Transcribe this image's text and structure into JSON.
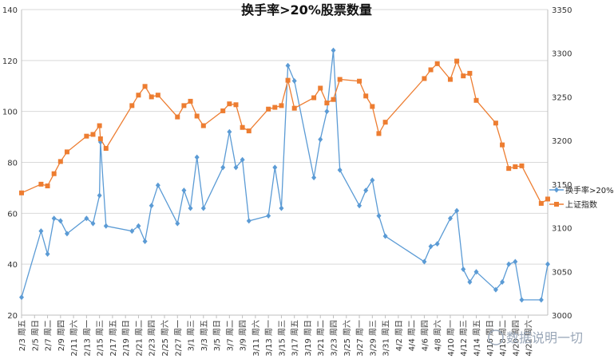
{
  "chart_data": {
    "type": "line",
    "title": "换手率>20%股票数量",
    "x_labels": [
      "2/3 周五",
      "2/5 周日",
      "2/7 周二",
      "2/9 周四",
      "2/11 周六",
      "2/13 周一",
      "2/15 周三",
      "2/17 周五",
      "2/19 周日",
      "2/21 周二",
      "2/23 周四",
      "2/25 周六",
      "2/27 周一",
      "3/1 周三",
      "3/3 周五",
      "3/5 周日",
      "3/7 周二",
      "3/9 周四",
      "3/11 周六",
      "3/13 周一",
      "3/15 周三",
      "3/17 周五",
      "3/19 周日",
      "3/21 周二",
      "3/23 周四",
      "3/25 周六",
      "3/27 周一",
      "3/29 周三",
      "3/31 周五",
      "4/2 周日",
      "4/4 周二",
      "4/6 周四",
      "4/8 周六",
      "4/10 周一",
      "4/12 周三",
      "4/14 周五",
      "4/16 周日",
      "4/18 周二",
      "4/20 周四",
      "4/22 周六"
    ],
    "y_left": {
      "min": 20,
      "max": 140,
      "ticks": [
        20,
        40,
        60,
        80,
        100,
        120,
        140
      ]
    },
    "y_right": {
      "min": 3000,
      "max": 3350,
      "ticks": [
        3000,
        3050,
        3100,
        3150,
        3200,
        3250,
        3300,
        3350
      ]
    },
    "grid": true,
    "legend_position": "right",
    "series": [
      {
        "name": "换手率>20%",
        "axis": "left",
        "color": "#5b9bd5",
        "marker": "diamond",
        "points": [
          {
            "x": 0,
            "y": 27
          },
          {
            "x": 3,
            "y": 53
          },
          {
            "x": 4,
            "y": 44
          },
          {
            "x": 5,
            "y": 58
          },
          {
            "x": 6,
            "y": 57
          },
          {
            "x": 7,
            "y": 52
          },
          {
            "x": 10,
            "y": 58
          },
          {
            "x": 11,
            "y": 56
          },
          {
            "x": 12,
            "y": 67
          },
          {
            "x": 12.15,
            "y": 88
          },
          {
            "x": 13,
            "y": 55
          },
          {
            "x": 17,
            "y": 53
          },
          {
            "x": 18,
            "y": 55
          },
          {
            "x": 19,
            "y": 49
          },
          {
            "x": 20,
            "y": 63
          },
          {
            "x": 21,
            "y": 71
          },
          {
            "x": 24,
            "y": 56
          },
          {
            "x": 25,
            "y": 69
          },
          {
            "x": 26,
            "y": 62
          },
          {
            "x": 27,
            "y": 82
          },
          {
            "x": 28,
            "y": 62
          },
          {
            "x": 31,
            "y": 78
          },
          {
            "x": 32,
            "y": 92
          },
          {
            "x": 33,
            "y": 78
          },
          {
            "x": 34,
            "y": 81
          },
          {
            "x": 35,
            "y": 57
          },
          {
            "x": 38,
            "y": 59
          },
          {
            "x": 39,
            "y": 78
          },
          {
            "x": 40,
            "y": 62
          },
          {
            "x": 41,
            "y": 118
          },
          {
            "x": 42,
            "y": 112
          },
          {
            "x": 45,
            "y": 74
          },
          {
            "x": 46,
            "y": 89
          },
          {
            "x": 47,
            "y": 100
          },
          {
            "x": 48,
            "y": 124
          },
          {
            "x": 49,
            "y": 77
          },
          {
            "x": 52,
            "y": 63
          },
          {
            "x": 53,
            "y": 69
          },
          {
            "x": 54,
            "y": 73
          },
          {
            "x": 55,
            "y": 59
          },
          {
            "x": 56,
            "y": 51
          },
          {
            "x": 62,
            "y": 41
          },
          {
            "x": 63,
            "y": 47
          },
          {
            "x": 64,
            "y": 48
          },
          {
            "x": 66,
            "y": 58
          },
          {
            "x": 67,
            "y": 61
          },
          {
            "x": 68,
            "y": 38
          },
          {
            "x": 69,
            "y": 33
          },
          {
            "x": 70,
            "y": 37
          },
          {
            "x": 73,
            "y": 30
          },
          {
            "x": 74,
            "y": 33
          },
          {
            "x": 75,
            "y": 40
          },
          {
            "x": 76,
            "y": 41
          },
          {
            "x": 77,
            "y": 26
          },
          {
            "x": 80,
            "y": 26
          },
          {
            "x": 81,
            "y": 40
          }
        ]
      },
      {
        "name": "上证指数",
        "axis": "right",
        "color": "#ed7d31",
        "marker": "square",
        "points": [
          {
            "x": 0,
            "y": 3140
          },
          {
            "x": 3,
            "y": 3150
          },
          {
            "x": 4,
            "y": 3148
          },
          {
            "x": 5,
            "y": 3162
          },
          {
            "x": 6,
            "y": 3176
          },
          {
            "x": 7,
            "y": 3187
          },
          {
            "x": 10,
            "y": 3205
          },
          {
            "x": 11,
            "y": 3207
          },
          {
            "x": 12,
            "y": 3217
          },
          {
            "x": 12.15,
            "y": 3202
          },
          {
            "x": 13,
            "y": 3191
          },
          {
            "x": 17,
            "y": 3240
          },
          {
            "x": 18,
            "y": 3252
          },
          {
            "x": 19,
            "y": 3262
          },
          {
            "x": 20,
            "y": 3250
          },
          {
            "x": 21,
            "y": 3252
          },
          {
            "x": 24,
            "y": 3227
          },
          {
            "x": 25,
            "y": 3240
          },
          {
            "x": 26,
            "y": 3245
          },
          {
            "x": 27,
            "y": 3228
          },
          {
            "x": 28,
            "y": 3217
          },
          {
            "x": 31,
            "y": 3234
          },
          {
            "x": 32,
            "y": 3242
          },
          {
            "x": 33,
            "y": 3241
          },
          {
            "x": 34,
            "y": 3215
          },
          {
            "x": 35,
            "y": 3211
          },
          {
            "x": 38,
            "y": 3236
          },
          {
            "x": 39,
            "y": 3238
          },
          {
            "x": 40,
            "y": 3240
          },
          {
            "x": 41,
            "y": 3269
          },
          {
            "x": 42,
            "y": 3237
          },
          {
            "x": 45,
            "y": 3249
          },
          {
            "x": 46,
            "y": 3260
          },
          {
            "x": 47,
            "y": 3243
          },
          {
            "x": 48,
            "y": 3247
          },
          {
            "x": 49,
            "y": 3270
          },
          {
            "x": 52,
            "y": 3268
          },
          {
            "x": 53,
            "y": 3251
          },
          {
            "x": 54,
            "y": 3239
          },
          {
            "x": 55,
            "y": 3208
          },
          {
            "x": 56,
            "y": 3221
          },
          {
            "x": 62,
            "y": 3271
          },
          {
            "x": 63,
            "y": 3281
          },
          {
            "x": 64,
            "y": 3288
          },
          {
            "x": 66,
            "y": 3270
          },
          {
            "x": 67,
            "y": 3291
          },
          {
            "x": 68,
            "y": 3274
          },
          {
            "x": 69,
            "y": 3277
          },
          {
            "x": 70,
            "y": 3246
          },
          {
            "x": 73,
            "y": 3220
          },
          {
            "x": 74,
            "y": 3195
          },
          {
            "x": 75,
            "y": 3168
          },
          {
            "x": 76,
            "y": 3170
          },
          {
            "x": 77,
            "y": 3171
          },
          {
            "x": 80,
            "y": 3128
          },
          {
            "x": 81,
            "y": 3133
          }
        ]
      }
    ]
  },
  "watermark": "数据说明一切"
}
